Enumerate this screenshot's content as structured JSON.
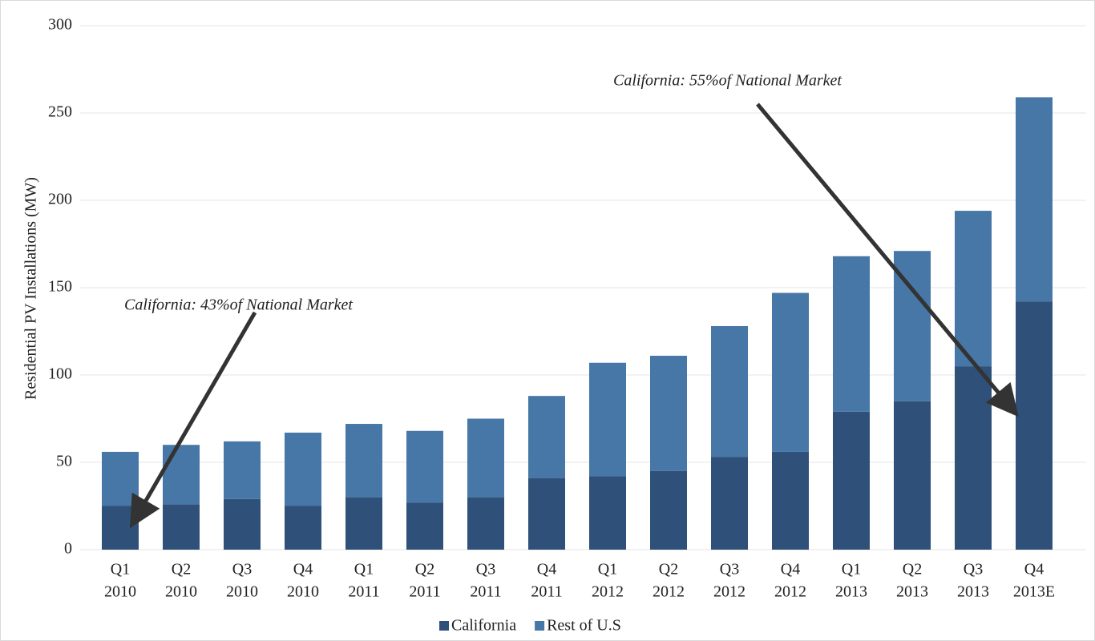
{
  "chart_data": {
    "type": "stacked_bar",
    "y_axis_label": "Residential PV Installations (MW)",
    "categories": [
      [
        "Q1",
        "2010"
      ],
      [
        "Q2",
        "2010"
      ],
      [
        "Q3",
        "2010"
      ],
      [
        "Q4",
        "2010"
      ],
      [
        "Q1",
        "2011"
      ],
      [
        "Q2",
        "2011"
      ],
      [
        "Q3",
        "2011"
      ],
      [
        "Q4",
        "2011"
      ],
      [
        "Q1",
        "2012"
      ],
      [
        "Q2",
        "2012"
      ],
      [
        "Q3",
        "2012"
      ],
      [
        "Q4",
        "2012"
      ],
      [
        "Q1",
        "2013"
      ],
      [
        "Q2",
        "2013"
      ],
      [
        "Q3",
        "2013"
      ],
      [
        "Q4",
        "2013E"
      ]
    ],
    "series": [
      {
        "name": "California",
        "color": "#2f5179",
        "values": [
          25,
          26,
          29,
          25,
          30,
          27,
          30,
          41,
          42,
          45,
          53,
          56,
          79,
          85,
          105,
          142
        ]
      },
      {
        "name": "Rest of U.S",
        "color": "#4677a6",
        "values": [
          31,
          34,
          33,
          42,
          42,
          41,
          45,
          47,
          65,
          66,
          75,
          91,
          89,
          86,
          89,
          117
        ]
      }
    ],
    "ylim": [
      0,
      300
    ],
    "yticks": [
      0,
      50,
      100,
      150,
      200,
      250,
      300
    ],
    "grid": true,
    "legend": "bottom",
    "annotations": [
      "California: 43%of National Market",
      "California: 55%of National Market"
    ]
  }
}
